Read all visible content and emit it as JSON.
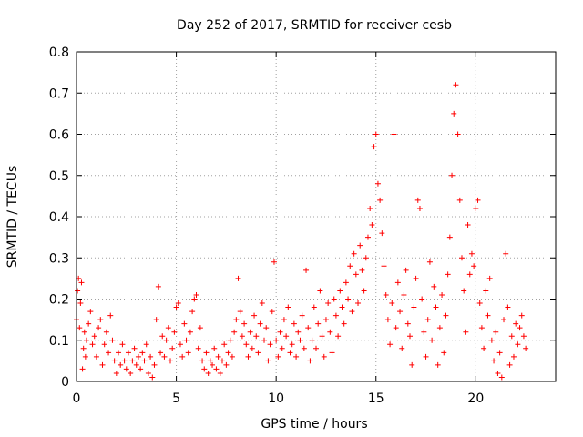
{
  "chart_data": {
    "type": "scatter",
    "title": "Day 252 of 2017, SRMTID for receiver cesb",
    "xlabel": "GPS time / hours",
    "ylabel": "SRMTID / TECUs",
    "xlim": [
      0,
      24
    ],
    "ylim": [
      0,
      0.8
    ],
    "xticks": [
      0,
      5,
      10,
      15,
      20
    ],
    "xtick_labels": [
      "0",
      "5",
      "10",
      "15",
      "20"
    ],
    "yticks": [
      0,
      0.1,
      0.2,
      0.3,
      0.4,
      0.5,
      0.6,
      0.7,
      0.8
    ],
    "ytick_labels": [
      "0",
      "0.1",
      "0.2",
      "0.3",
      "0.4",
      "0.5",
      "0.6",
      "0.7",
      "0.8"
    ],
    "grid": true,
    "marker": "+",
    "color": "#ff0000",
    "series": [
      {
        "name": "SRMTID",
        "points": [
          [
            0.0,
            0.15
          ],
          [
            0.05,
            0.22
          ],
          [
            0.1,
            0.25
          ],
          [
            0.15,
            0.13
          ],
          [
            0.2,
            0.19
          ],
          [
            0.25,
            0.24
          ],
          [
            0.3,
            0.03
          ],
          [
            0.35,
            0.08
          ],
          [
            0.4,
            0.12
          ],
          [
            0.45,
            0.06
          ],
          [
            0.5,
            0.1
          ],
          [
            0.6,
            0.14
          ],
          [
            0.7,
            0.17
          ],
          [
            0.8,
            0.09
          ],
          [
            0.9,
            0.11
          ],
          [
            1.0,
            0.06
          ],
          [
            1.1,
            0.13
          ],
          [
            1.2,
            0.15
          ],
          [
            1.3,
            0.04
          ],
          [
            1.4,
            0.09
          ],
          [
            1.5,
            0.12
          ],
          [
            1.6,
            0.07
          ],
          [
            1.7,
            0.16
          ],
          [
            1.8,
            0.1
          ],
          [
            1.9,
            0.05
          ],
          [
            2.0,
            0.02
          ],
          [
            2.1,
            0.07
          ],
          [
            2.2,
            0.04
          ],
          [
            2.3,
            0.09
          ],
          [
            2.4,
            0.05
          ],
          [
            2.5,
            0.03
          ],
          [
            2.6,
            0.07
          ],
          [
            2.7,
            0.02
          ],
          [
            2.8,
            0.05
          ],
          [
            2.9,
            0.08
          ],
          [
            3.0,
            0.04
          ],
          [
            3.1,
            0.06
          ],
          [
            3.2,
            0.03
          ],
          [
            3.3,
            0.07
          ],
          [
            3.4,
            0.05
          ],
          [
            3.5,
            0.09
          ],
          [
            3.6,
            0.02
          ],
          [
            3.7,
            0.06
          ],
          [
            3.8,
            0.01
          ],
          [
            3.9,
            0.04
          ],
          [
            4.0,
            0.15
          ],
          [
            4.1,
            0.23
          ],
          [
            4.2,
            0.07
          ],
          [
            4.3,
            0.11
          ],
          [
            4.4,
            0.06
          ],
          [
            4.5,
            0.1
          ],
          [
            4.6,
            0.13
          ],
          [
            4.7,
            0.05
          ],
          [
            4.8,
            0.08
          ],
          [
            4.9,
            0.12
          ],
          [
            5.0,
            0.18
          ],
          [
            5.1,
            0.19
          ],
          [
            5.2,
            0.09
          ],
          [
            5.3,
            0.06
          ],
          [
            5.4,
            0.14
          ],
          [
            5.5,
            0.1
          ],
          [
            5.6,
            0.07
          ],
          [
            5.7,
            0.12
          ],
          [
            5.8,
            0.17
          ],
          [
            5.9,
            0.2
          ],
          [
            6.0,
            0.21
          ],
          [
            6.1,
            0.08
          ],
          [
            6.2,
            0.13
          ],
          [
            6.3,
            0.05
          ],
          [
            6.4,
            0.03
          ],
          [
            6.5,
            0.07
          ],
          [
            6.6,
            0.02
          ],
          [
            6.7,
            0.05
          ],
          [
            6.8,
            0.04
          ],
          [
            6.9,
            0.08
          ],
          [
            7.0,
            0.03
          ],
          [
            7.1,
            0.06
          ],
          [
            7.2,
            0.02
          ],
          [
            7.3,
            0.05
          ],
          [
            7.4,
            0.09
          ],
          [
            7.5,
            0.04
          ],
          [
            7.6,
            0.07
          ],
          [
            7.7,
            0.1
          ],
          [
            7.8,
            0.06
          ],
          [
            7.9,
            0.12
          ],
          [
            8.0,
            0.15
          ],
          [
            8.1,
            0.25
          ],
          [
            8.2,
            0.17
          ],
          [
            8.3,
            0.11
          ],
          [
            8.4,
            0.14
          ],
          [
            8.5,
            0.09
          ],
          [
            8.6,
            0.06
          ],
          [
            8.7,
            0.12
          ],
          [
            8.8,
            0.08
          ],
          [
            8.9,
            0.16
          ],
          [
            9.0,
            0.11
          ],
          [
            9.1,
            0.07
          ],
          [
            9.2,
            0.14
          ],
          [
            9.3,
            0.19
          ],
          [
            9.4,
            0.1
          ],
          [
            9.5,
            0.13
          ],
          [
            9.6,
            0.05
          ],
          [
            9.7,
            0.09
          ],
          [
            9.8,
            0.17
          ],
          [
            9.9,
            0.29
          ],
          [
            10.0,
            0.1
          ],
          [
            10.1,
            0.06
          ],
          [
            10.2,
            0.12
          ],
          [
            10.3,
            0.08
          ],
          [
            10.4,
            0.15
          ],
          [
            10.5,
            0.11
          ],
          [
            10.6,
            0.18
          ],
          [
            10.7,
            0.07
          ],
          [
            10.8,
            0.09
          ],
          [
            10.9,
            0.14
          ],
          [
            11.0,
            0.06
          ],
          [
            11.1,
            0.12
          ],
          [
            11.2,
            0.1
          ],
          [
            11.3,
            0.16
          ],
          [
            11.4,
            0.08
          ],
          [
            11.5,
            0.27
          ],
          [
            11.6,
            0.13
          ],
          [
            11.7,
            0.05
          ],
          [
            11.8,
            0.1
          ],
          [
            11.9,
            0.18
          ],
          [
            12.0,
            0.08
          ],
          [
            12.1,
            0.14
          ],
          [
            12.2,
            0.22
          ],
          [
            12.3,
            0.11
          ],
          [
            12.4,
            0.06
          ],
          [
            12.5,
            0.15
          ],
          [
            12.6,
            0.19
          ],
          [
            12.7,
            0.12
          ],
          [
            12.8,
            0.07
          ],
          [
            12.9,
            0.2
          ],
          [
            13.0,
            0.16
          ],
          [
            13.1,
            0.11
          ],
          [
            13.2,
            0.22
          ],
          [
            13.3,
            0.18
          ],
          [
            13.4,
            0.14
          ],
          [
            13.5,
            0.24
          ],
          [
            13.6,
            0.2
          ],
          [
            13.7,
            0.28
          ],
          [
            13.8,
            0.17
          ],
          [
            13.9,
            0.31
          ],
          [
            14.0,
            0.26
          ],
          [
            14.1,
            0.19
          ],
          [
            14.2,
            0.33
          ],
          [
            14.3,
            0.27
          ],
          [
            14.4,
            0.22
          ],
          [
            14.5,
            0.3
          ],
          [
            14.6,
            0.35
          ],
          [
            14.7,
            0.42
          ],
          [
            14.8,
            0.38
          ],
          [
            14.9,
            0.57
          ],
          [
            15.0,
            0.6
          ],
          [
            15.1,
            0.48
          ],
          [
            15.2,
            0.44
          ],
          [
            15.3,
            0.36
          ],
          [
            15.4,
            0.28
          ],
          [
            15.5,
            0.21
          ],
          [
            15.6,
            0.15
          ],
          [
            15.7,
            0.09
          ],
          [
            15.8,
            0.19
          ],
          [
            15.9,
            0.6
          ],
          [
            16.0,
            0.13
          ],
          [
            16.1,
            0.24
          ],
          [
            16.2,
            0.17
          ],
          [
            16.3,
            0.08
          ],
          [
            16.4,
            0.21
          ],
          [
            16.5,
            0.27
          ],
          [
            16.6,
            0.14
          ],
          [
            16.7,
            0.11
          ],
          [
            16.8,
            0.04
          ],
          [
            16.9,
            0.18
          ],
          [
            17.0,
            0.25
          ],
          [
            17.1,
            0.44
          ],
          [
            17.2,
            0.42
          ],
          [
            17.3,
            0.2
          ],
          [
            17.4,
            0.12
          ],
          [
            17.5,
            0.06
          ],
          [
            17.6,
            0.15
          ],
          [
            17.7,
            0.29
          ],
          [
            17.8,
            0.1
          ],
          [
            17.9,
            0.23
          ],
          [
            18.0,
            0.18
          ],
          [
            18.1,
            0.04
          ],
          [
            18.2,
            0.13
          ],
          [
            18.3,
            0.21
          ],
          [
            18.4,
            0.07
          ],
          [
            18.5,
            0.16
          ],
          [
            18.6,
            0.26
          ],
          [
            18.7,
            0.35
          ],
          [
            18.8,
            0.5
          ],
          [
            18.9,
            0.65
          ],
          [
            19.0,
            0.72
          ],
          [
            19.1,
            0.6
          ],
          [
            19.2,
            0.44
          ],
          [
            19.3,
            0.3
          ],
          [
            19.4,
            0.22
          ],
          [
            19.5,
            0.12
          ],
          [
            19.6,
            0.38
          ],
          [
            19.7,
            0.26
          ],
          [
            19.8,
            0.31
          ],
          [
            19.9,
            0.28
          ],
          [
            20.0,
            0.42
          ],
          [
            20.1,
            0.44
          ],
          [
            20.2,
            0.19
          ],
          [
            20.3,
            0.13
          ],
          [
            20.4,
            0.08
          ],
          [
            20.5,
            0.22
          ],
          [
            20.6,
            0.16
          ],
          [
            20.7,
            0.25
          ],
          [
            20.8,
            0.1
          ],
          [
            20.9,
            0.05
          ],
          [
            21.0,
            0.12
          ],
          [
            21.1,
            0.02
          ],
          [
            21.2,
            0.07
          ],
          [
            21.3,
            0.01
          ],
          [
            21.4,
            0.15
          ],
          [
            21.5,
            0.31
          ],
          [
            21.6,
            0.18
          ],
          [
            21.7,
            0.04
          ],
          [
            21.8,
            0.11
          ],
          [
            21.9,
            0.06
          ],
          [
            22.0,
            0.14
          ],
          [
            22.1,
            0.09
          ],
          [
            22.2,
            0.13
          ],
          [
            22.3,
            0.16
          ],
          [
            22.4,
            0.11
          ],
          [
            22.5,
            0.08
          ]
        ]
      }
    ]
  }
}
